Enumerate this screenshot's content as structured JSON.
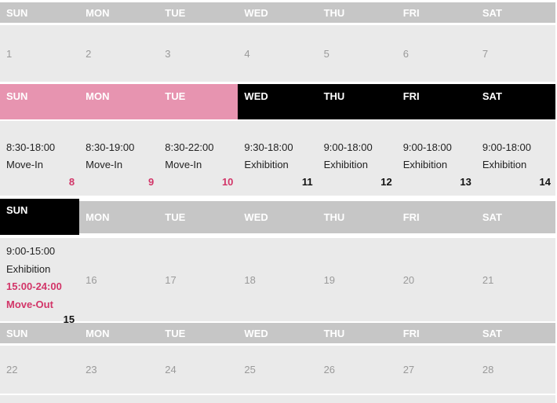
{
  "weekdays": [
    "SUN",
    "MON",
    "TUE",
    "WED",
    "THU",
    "FRI",
    "SAT"
  ],
  "colors": {
    "header_gray": "#c6c6c6",
    "header_pink": "#e794b0",
    "header_black": "#000000",
    "week_row_bg": "#eaeaea",
    "muted_day_number": "#9a9a9a",
    "event_text": "#222222",
    "accent_pink": "#d23568"
  },
  "weeks": [
    {
      "days": [
        {
          "number": "1"
        },
        {
          "number": "2"
        },
        {
          "number": "3"
        },
        {
          "number": "4"
        },
        {
          "number": "5"
        },
        {
          "number": "6"
        },
        {
          "number": "7"
        }
      ]
    },
    {
      "days": [
        {
          "time": "8:30-18:00",
          "event": "Move-In",
          "number": "8"
        },
        {
          "time": "8:30-19:00",
          "event": "Move-In",
          "number": "9"
        },
        {
          "time": "8:30-22:00",
          "event": "Move-In",
          "number": "10"
        },
        {
          "time": "9:30-18:00",
          "event": "Exhibition",
          "number": "11"
        },
        {
          "time": "9:00-18:00",
          "event": "Exhibition",
          "number": "12"
        },
        {
          "time": "9:00-18:00",
          "event": "Exhibition",
          "number": "13"
        },
        {
          "time": "9:00-18:00",
          "event": "Exhibition",
          "number": "14"
        }
      ]
    },
    {
      "days": [
        {
          "time1": "9:00-15:00",
          "event1": "Exhibition",
          "time2": "15:00-24:00",
          "event2": "Move-Out",
          "number": "15"
        },
        {
          "number": "16"
        },
        {
          "number": "17"
        },
        {
          "number": "18"
        },
        {
          "number": "19"
        },
        {
          "number": "20"
        },
        {
          "number": "21"
        }
      ]
    },
    {
      "days": [
        {
          "number": "22"
        },
        {
          "number": "23"
        },
        {
          "number": "24"
        },
        {
          "number": "25"
        },
        {
          "number": "26"
        },
        {
          "number": "27"
        },
        {
          "number": "28"
        }
      ]
    }
  ]
}
